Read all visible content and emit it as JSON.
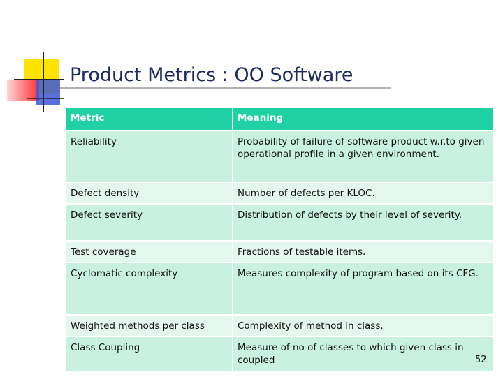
{
  "header": {
    "title": "Product Metrics : OO Software"
  },
  "table": {
    "columns": [
      "Metric",
      "Meaning"
    ],
    "rows": [
      [
        "Reliability",
        "Probability of failure of software product w.r.to given operational profile in a given environment."
      ],
      [
        "Defect density",
        "Number of defects per KLOC."
      ],
      [
        "Defect severity",
        "Distribution of defects by their level of severity."
      ],
      [
        "Test coverage",
        "Fractions of testable items."
      ],
      [
        "Cyclomatic complexity",
        "Measures complexity of program based on its CFG."
      ],
      [
        "Weighted methods per class",
        "Complexity of method in class."
      ],
      [
        "Class Coupling",
        "Measure of no of classes to which given class in coupled"
      ]
    ]
  },
  "page_number": 52
}
